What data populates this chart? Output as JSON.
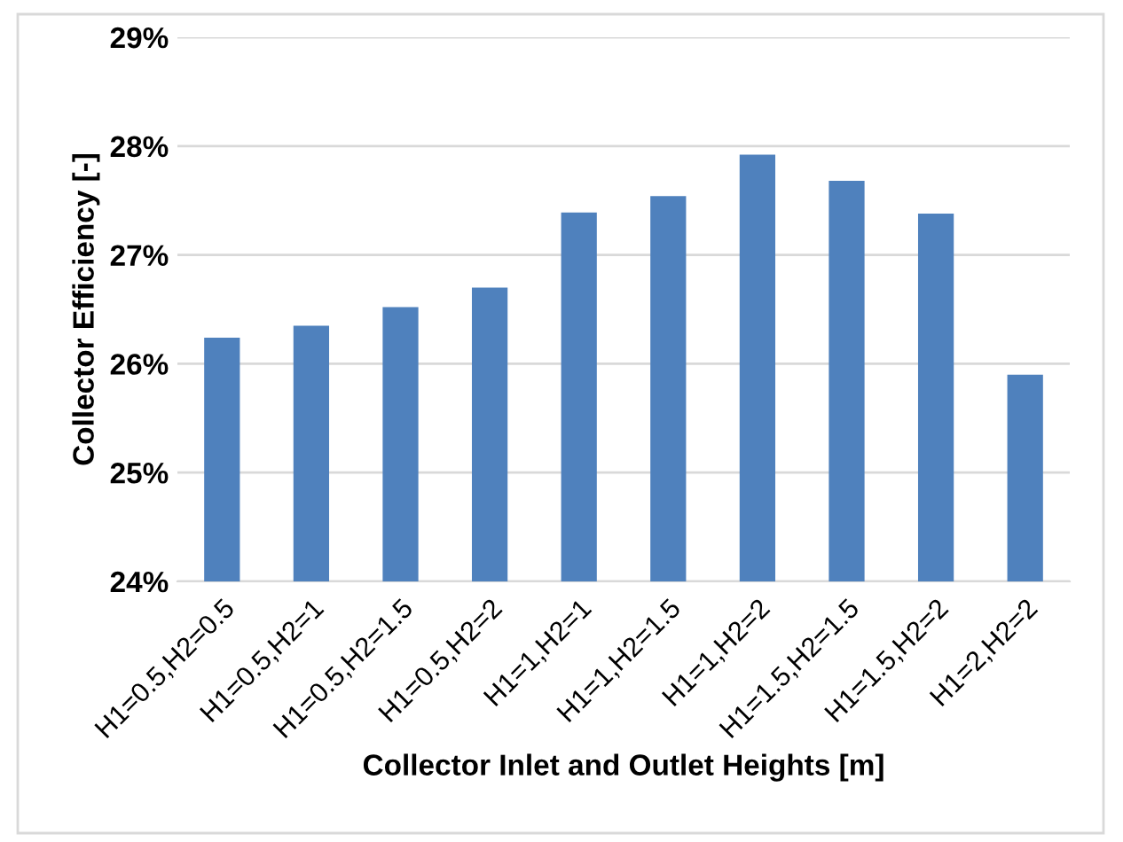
{
  "chart_data": {
    "type": "bar",
    "xlabel": "Collector Inlet and Outlet Heights [m]",
    "ylabel": "Collector Efficiency [-]",
    "categories": [
      "H1=0.5,H2=0.5",
      "H1=0.5,H2=1",
      "H1=0.5,H2=1.5",
      "H1=0.5,H2=2",
      "H1=1,H2=1",
      "H1=1,H2=1.5",
      "H1=1,H2=2",
      "H1=1.5,H2=1.5",
      "H1=1.5,H2=2",
      "H1=2,H2=2"
    ],
    "values": [
      26.24,
      26.35,
      26.52,
      26.7,
      27.39,
      27.54,
      27.92,
      27.68,
      27.38,
      25.9
    ],
    "color": "#4f81bd",
    "ylim": [
      24,
      29
    ],
    "yticks": [
      {
        "value": 24,
        "label": "24%"
      },
      {
        "value": 25,
        "label": "25%"
      },
      {
        "value": 26,
        "label": "26%"
      },
      {
        "value": 27,
        "label": "27%"
      },
      {
        "value": 28,
        "label": "28%"
      },
      {
        "value": 29,
        "label": "29%"
      }
    ],
    "grid": "y"
  }
}
